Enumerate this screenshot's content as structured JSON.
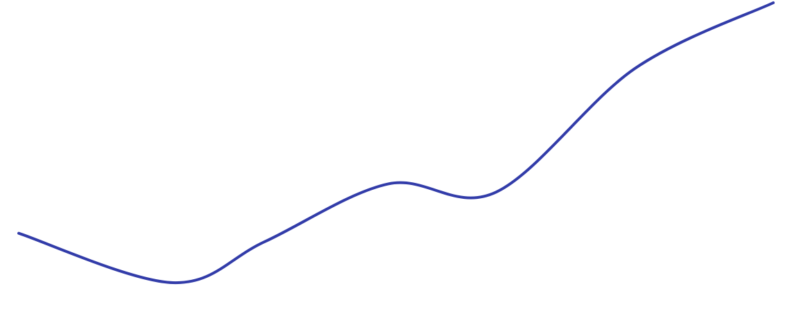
{
  "chart_data": {
    "type": "line",
    "title": "",
    "xlabel": "",
    "ylabel": "",
    "grid": false,
    "axes_visible": false,
    "legend": "none",
    "line_color": "#323ca9",
    "series": [
      {
        "values": [
          [
            0.0,
            0.0
          ],
          [
            1.0,
            -0.6
          ],
          [
            1.6,
            -0.1
          ],
          [
            2.4,
            0.6
          ],
          [
            3.1,
            0.5
          ],
          [
            4.0,
            2.0
          ],
          [
            4.9,
            2.8
          ]
        ]
      }
    ]
  }
}
